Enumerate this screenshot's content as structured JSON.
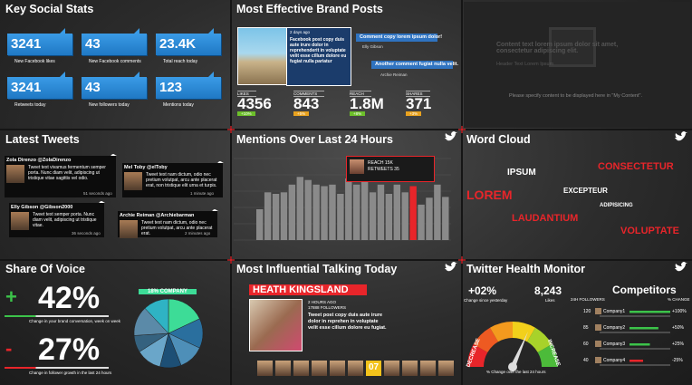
{
  "panels": {
    "stats": {
      "title": "Key Social Stats",
      "items": [
        {
          "value": "3241",
          "label": "New Facebook likes"
        },
        {
          "value": "43",
          "label": "New Facebook comments"
        },
        {
          "value": "23.4K",
          "label": "Total reach today"
        },
        {
          "value": "3241",
          "label": "Retweets today"
        },
        {
          "value": "43",
          "label": "New followers today"
        },
        {
          "value": "123",
          "label": "Mentions today"
        }
      ]
    },
    "posts": {
      "title": "Most Effective Brand Posts",
      "time": "2 days ago",
      "copy": "Facebook post copy duis aute irure dolor in reprehenderit in voluptate velit esse cillum dolore eu fugiat nulla pariatur",
      "comments": [
        {
          "text": "Comment copy lorem ipsum dolor!",
          "author": "Elly Gibson"
        },
        {
          "text": "Another comment fugiat nulla velit.",
          "author": "Archie Reiman"
        }
      ],
      "metrics": [
        {
          "label": "LIKES",
          "value": "4356",
          "change": "+10%",
          "color": "#6cbf2a"
        },
        {
          "label": "COMMENTS",
          "value": "843",
          "change": "+5%",
          "color": "#e8a21f"
        },
        {
          "label": "REACH",
          "value": "1.8M",
          "change": "+8%",
          "color": "#6cbf2a"
        },
        {
          "label": "SHARES",
          "value": "371",
          "change": "+3%",
          "color": "#e8a21f"
        }
      ]
    },
    "placeholder": {
      "content": "Content text lorem ipsum dolor sit amet, consectetur adipiscing elit.",
      "header": "Header Text Lorem Ipsum",
      "note": "Please specify content to be displayed here in \"My Content\"."
    },
    "tweets": {
      "title": "Latest Tweets",
      "items": [
        {
          "user": "Zola Direnzo @ZolaDirenzo",
          "text": "Tweet text vivamus fermentum semper porta. Nunc diam velit, adipiscing ut tristique vitae sagittis vel odio.",
          "time": "51 seconds ago"
        },
        {
          "user": "Mel Toby @elToby",
          "text": "Tweet text nam dictum, odio nec pretium volutpat, arcu ante placerat erat, non tristique elit urna et turpis.",
          "time": "1 minute ago"
        },
        {
          "user": "Elly Gibson @Gibson2000",
          "text": "Tweet text semper porta. Nunc diam velit, adipiscing ut tristique vitae.",
          "time": "36 seconds ago"
        },
        {
          "user": "Archie Reiman @Archiebarman",
          "text": "Tweet text nam dictum, odio nec pretium volutpat, arcu ante placerat erat.",
          "time": "2 minutes ago"
        }
      ]
    },
    "mentions": {
      "title": "Mentions Over Last 24 Hours",
      "values": [
        40,
        62,
        60,
        62,
        72,
        82,
        78,
        72,
        70,
        72,
        60,
        80,
        72,
        76,
        62,
        72,
        60,
        72,
        62,
        70,
        46,
        55,
        72,
        56
      ],
      "color": "#8a8a8a",
      "highlight_color": "#e8252a",
      "highlight": 19,
      "popup": [
        "REACH 15K",
        "RETWEETS 35"
      ]
    },
    "cloud": {
      "title": "Word Cloud",
      "words": [
        {
          "text": "IPSUM",
          "color": "#ffffff"
        },
        {
          "text": "CONSECTETUR",
          "color": "#e8252a"
        },
        {
          "text": "LOREM",
          "color": "#e8252a"
        },
        {
          "text": "EXCEPTEUR",
          "color": "#ffffff"
        },
        {
          "text": "ADIPISICING",
          "color": "#ffffff"
        },
        {
          "text": "LAUDANTIUM",
          "color": "#e8252a"
        },
        {
          "text": "VOLUPTATE",
          "color": "#e8252a"
        }
      ]
    },
    "voice": {
      "title": "Share Of Voice",
      "up": {
        "sign": "+",
        "value": "42%",
        "caption": "Change in your brand conversation, week on week"
      },
      "down": {
        "sign": "-",
        "value": "27%",
        "caption": "Change in follower growth in the last 24 hours"
      },
      "pie_label": "18% COMPANY",
      "slices": [
        {
          "value": 18,
          "color": "#3ddc97"
        },
        {
          "value": 14,
          "color": "#2a6f9e"
        },
        {
          "value": 12,
          "color": "#4e8fb8"
        },
        {
          "value": 10,
          "color": "#1d4f75"
        },
        {
          "value": 12,
          "color": "#6aa6c9"
        },
        {
          "value": 8,
          "color": "#35627f"
        },
        {
          "value": 14,
          "color": "#5b8aa8"
        },
        {
          "value": 12,
          "color": "#2fb3c4"
        }
      ]
    },
    "influential": {
      "title": "Most Influential Talking Today",
      "name": "HEATH KINGSLAND",
      "time": "2 HOURS AGO",
      "followers": "17888 FOLLOWERS",
      "copy": "Tweet post copy duis aute irure dolor in reprehen in voluptate velit esse cillum dolore eu fugiat.",
      "badge": "07"
    },
    "health": {
      "title": "Twitter Health Monitor",
      "change": "+02%",
      "change_caption": "Change since yesterday",
      "likes": "8,243",
      "likes_caption": "Likes",
      "decrease": "DECREASE",
      "increase": "INCREASE",
      "gauge_caption": "% Change over the last 24 hours",
      "competitors": {
        "title": "Competitors",
        "col1": "24H FOLLOWERS",
        "col2": "% CHANGE",
        "rows": [
          {
            "followers": 120,
            "name": "Company1",
            "change": "+100%",
            "color": "#3cc34a"
          },
          {
            "followers": 85,
            "name": "Company2",
            "change": "+50%",
            "color": "#3cc34a"
          },
          {
            "followers": 60,
            "name": "Company3",
            "change": "+25%",
            "color": "#3cc34a"
          },
          {
            "followers": 40,
            "name": "Company4",
            "change": "-25%",
            "color": "#e8252a"
          }
        ]
      }
    }
  }
}
